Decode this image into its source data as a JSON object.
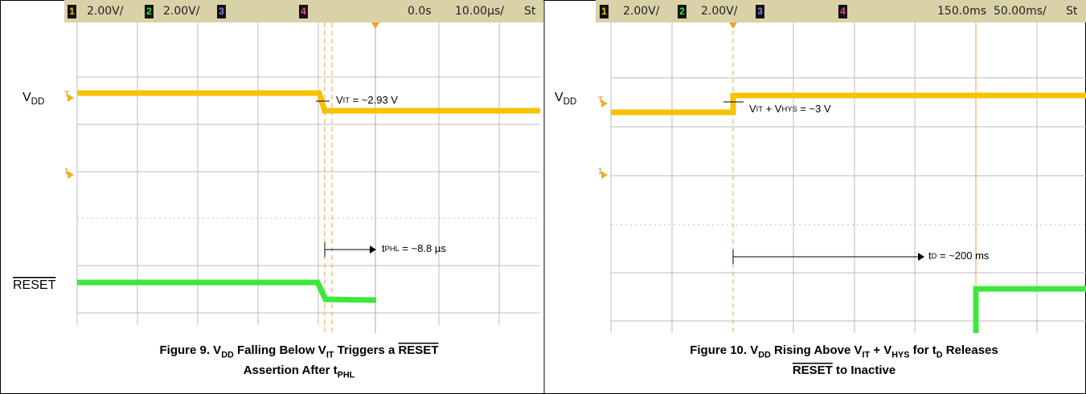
{
  "panels": [
    {
      "header": {
        "ch1": "1",
        "ch1_scale": "2.00V/",
        "ch2": "2",
        "ch2_scale": "2.00V/",
        "ch3": "3",
        "ch4": "4",
        "delay": "0.0s",
        "timebase": "10.00µs/",
        "status": "St"
      },
      "markers": [
        "T",
        "1"
      ],
      "vdd_label": [
        {
          "text": "V"
        },
        {
          "text": "DD",
          "style": "sub"
        }
      ],
      "reset_label": [
        {
          "text": "RESET",
          "style": "over"
        }
      ],
      "annotations": [
        [
          {
            "text": "V"
          },
          {
            "text": "IT",
            "style": "small"
          },
          {
            "text": " = ~2.93 V"
          }
        ],
        [
          {
            "text": "t"
          },
          {
            "text": "PHL",
            "style": "small"
          },
          {
            "text": " = ~8.8 µs"
          }
        ]
      ],
      "caption": [
        [
          {
            "text": "Figure 9. V"
          },
          {
            "text": "DD",
            "style": "sub"
          },
          {
            "text": " Falling Below V"
          },
          {
            "text": "IT",
            "style": "sub"
          },
          {
            "text": " Triggers a "
          },
          {
            "text": "RESET",
            "style": "over"
          }
        ],
        [
          {
            "text": "Assertion After t"
          },
          {
            "text": "PHL",
            "style": "sub"
          }
        ]
      ]
    },
    {
      "header": {
        "ch1": "1",
        "ch1_scale": "2.00V/",
        "ch2": "2",
        "ch2_scale": "2.00V/",
        "ch3": "3",
        "ch4": "4",
        "delay": "150.0ms",
        "timebase": "50.00ms/",
        "status": "St"
      },
      "markers": [
        "T",
        "1"
      ],
      "vdd_label": [
        {
          "text": "V"
        },
        {
          "text": "DD",
          "style": "sub"
        }
      ],
      "annotations": [
        [
          {
            "text": "V"
          },
          {
            "text": "IT",
            "style": "small"
          },
          {
            "text": " + V"
          },
          {
            "text": "HYS",
            "style": "small"
          },
          {
            "text": " = ~3 V"
          }
        ],
        [
          {
            "text": "t"
          },
          {
            "text": "D",
            "style": "small"
          },
          {
            "text": " = ~200 ms"
          }
        ]
      ],
      "caption": [
        [
          {
            "text": "Figure 10. V"
          },
          {
            "text": "DD",
            "style": "sub"
          },
          {
            "text": " Rising Above V"
          },
          {
            "text": "IT",
            "style": "sub"
          },
          {
            "text": " + V"
          },
          {
            "text": "HYS",
            "style": "sub"
          },
          {
            "text": " for t"
          },
          {
            "text": "D",
            "style": "sub"
          },
          {
            "text": " Releases"
          }
        ],
        [
          {
            "text": "RESET",
            "style": "over"
          },
          {
            "text": " to Inactive"
          }
        ]
      ]
    }
  ]
}
